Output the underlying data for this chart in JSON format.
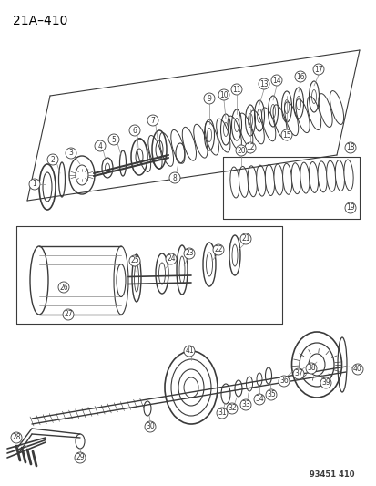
{
  "title": "21A–410",
  "watermark": "93451 410",
  "bg": "#ffffff",
  "gray": "#3a3a3a",
  "lgray": "#888888",
  "fig_w": 4.14,
  "fig_h": 5.33,
  "dpi": 100
}
